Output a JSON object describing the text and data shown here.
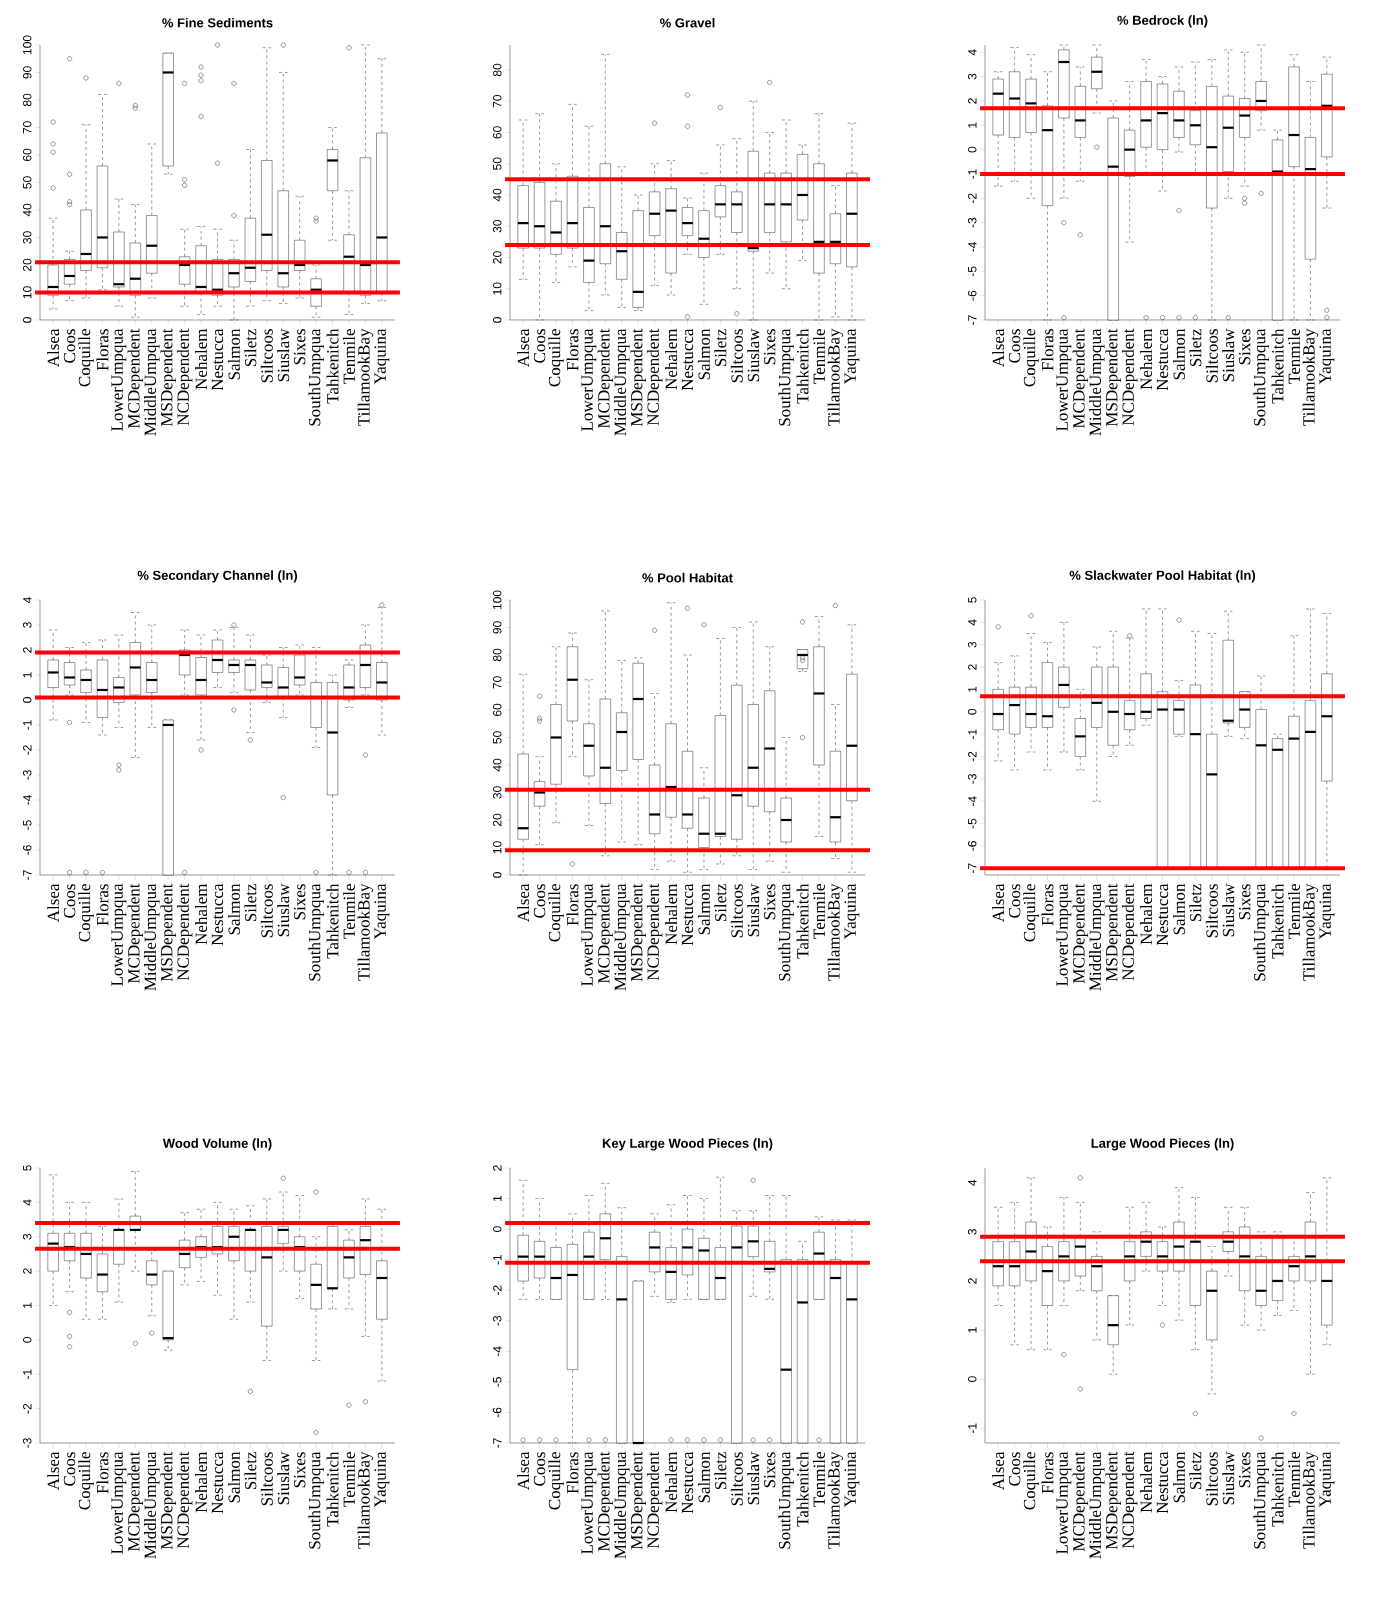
{
  "chart_data": [
    {
      "type": "box",
      "title": "% Fine Sediments",
      "categories": [
        "Alsea",
        "Coos",
        "Coquille",
        "Floras",
        "LowerUmpqua",
        "MCDependent",
        "MiddleUmpqua",
        "MSDependent",
        "NCDependent",
        "Nehalem",
        "Nestucca",
        "Salmon",
        "Siletz",
        "Siltcoos",
        "Siuslaw",
        "Sixes",
        "SouthUmpqua",
        "Tahkenitch",
        "Tenmile",
        "TillamookBay",
        "Yaquina"
      ],
      "ylim": [
        0,
        100
      ],
      "yticks": [
        0,
        10,
        20,
        30,
        40,
        50,
        60,
        70,
        80,
        90,
        100
      ],
      "ref_lines": [
        {
          "axis": "y",
          "value": 21,
          "color": "#ff0000"
        },
        {
          "axis": "y",
          "value": 10,
          "color": "#ff0000"
        }
      ],
      "boxes": [
        {
          "low": 4,
          "q1": 9,
          "median": 12,
          "q3": 20,
          "high": 37,
          "outliers": [
            48,
            61,
            64,
            72
          ]
        },
        {
          "low": 7,
          "q1": 13,
          "median": 16,
          "q3": 22,
          "high": 25,
          "outliers": [
            42,
            43,
            53,
            95
          ]
        },
        {
          "low": 8,
          "q1": 18,
          "median": 24,
          "q3": 40,
          "high": 71,
          "outliers": [
            88
          ]
        },
        {
          "low": 11,
          "q1": 19,
          "median": 30,
          "q3": 56,
          "high": 82
        },
        {
          "low": 5,
          "q1": 12,
          "median": 13,
          "q3": 32,
          "high": 44,
          "outliers": [
            86
          ]
        },
        {
          "low": 1,
          "q1": 9,
          "median": 15,
          "q3": 28,
          "high": 42,
          "outliers": [
            77,
            78
          ]
        },
        {
          "low": 8,
          "q1": 17,
          "median": 27,
          "q3": 38,
          "high": 64
        },
        {
          "low": 53,
          "q1": 56,
          "median": 90,
          "q3": 97,
          "high": 97
        },
        {
          "low": 5,
          "q1": 13,
          "median": 20,
          "q3": 23,
          "high": 33,
          "outliers": [
            49,
            51,
            86
          ]
        },
        {
          "low": 2,
          "q1": 10,
          "median": 12,
          "q3": 27,
          "high": 34,
          "outliers": [
            74,
            87,
            89,
            92
          ]
        },
        {
          "low": 5,
          "q1": 9,
          "median": 11,
          "q3": 22,
          "high": 33,
          "outliers": [
            57,
            100
          ]
        },
        {
          "low": 0,
          "q1": 12,
          "median": 17,
          "q3": 22,
          "high": 29,
          "outliers": [
            38,
            86
          ]
        },
        {
          "low": 5,
          "q1": 14,
          "median": 19,
          "q3": 37,
          "high": 62
        },
        {
          "low": 7,
          "q1": 18,
          "median": 31,
          "q3": 58,
          "high": 99
        },
        {
          "low": 6,
          "q1": 12,
          "median": 17,
          "q3": 47,
          "high": 90,
          "outliers": [
            100
          ]
        },
        {
          "low": 8,
          "q1": 18,
          "median": 20,
          "q3": 29,
          "high": 45
        },
        {
          "low": 1,
          "q1": 5,
          "median": 11,
          "q3": 15,
          "high": 20,
          "outliers": [
            36,
            37
          ]
        },
        {
          "low": 29,
          "q1": 47,
          "median": 58,
          "q3": 62,
          "high": 70
        },
        {
          "low": 2,
          "q1": 10,
          "median": 23,
          "q3": 31,
          "high": 47,
          "outliers": [
            99
          ]
        },
        {
          "low": 6,
          "q1": 9,
          "median": 20,
          "q3": 59,
          "high": 100
        },
        {
          "low": 7,
          "q1": 10,
          "median": 30,
          "q3": 68,
          "high": 95
        }
      ]
    },
    {
      "type": "box",
      "title": "% Gravel",
      "categories": [
        "Alsea",
        "Coos",
        "Coquille",
        "Floras",
        "LowerUmpqua",
        "MCDependent",
        "MiddleUmpqua",
        "MSDependent",
        "NCDependent",
        "Nehalem",
        "Nestucca",
        "Salmon",
        "Siletz",
        "Siltcoos",
        "Siuslaw",
        "Sixes",
        "SouthUmpqua",
        "Tahkenitch",
        "Tenmile",
        "TillamookBay",
        "Yaquina"
      ],
      "ylim": [
        0,
        88
      ],
      "yticks": [
        0,
        10,
        20,
        30,
        40,
        50,
        60,
        70,
        80
      ],
      "ref_lines": [
        {
          "axis": "y",
          "value": 45,
          "color": "#ff0000"
        },
        {
          "axis": "y",
          "value": 24,
          "color": "#ff0000"
        }
      ],
      "boxes": [
        {
          "low": 13,
          "q1": 23,
          "median": 31,
          "q3": 43,
          "high": 64
        },
        {
          "low": 0,
          "q1": 23,
          "median": 30,
          "q3": 44,
          "high": 66
        },
        {
          "low": 12,
          "q1": 21,
          "median": 28,
          "q3": 38,
          "high": 50
        },
        {
          "low": 17,
          "q1": 23,
          "median": 31,
          "q3": 46,
          "high": 69
        },
        {
          "low": 3,
          "q1": 12,
          "median": 19,
          "q3": 36,
          "high": 62
        },
        {
          "low": 8,
          "q1": 18,
          "median": 30,
          "q3": 50,
          "high": 85
        },
        {
          "low": 4,
          "q1": 13,
          "median": 22,
          "q3": 28,
          "high": 49
        },
        {
          "low": 3,
          "q1": 4,
          "median": 9,
          "q3": 35,
          "high": 40
        },
        {
          "low": 11,
          "q1": 27,
          "median": 34,
          "q3": 41,
          "high": 50,
          "outliers": [
            63
          ]
        },
        {
          "low": 8,
          "q1": 15,
          "median": 35,
          "q3": 42,
          "high": 51
        },
        {
          "low": 21,
          "q1": 27,
          "median": 31,
          "q3": 36,
          "high": 39,
          "outliers": [
            1,
            62,
            72
          ]
        },
        {
          "low": 5,
          "q1": 20,
          "median": 26,
          "q3": 35,
          "high": 47
        },
        {
          "low": 21,
          "q1": 33,
          "median": 37,
          "q3": 43,
          "high": 56,
          "outliers": [
            68
          ]
        },
        {
          "low": 10,
          "q1": 28,
          "median": 37,
          "q3": 41,
          "high": 58,
          "outliers": [
            2
          ]
        },
        {
          "low": 0,
          "q1": 22,
          "median": 23,
          "q3": 54,
          "high": 70
        },
        {
          "low": 15,
          "q1": 28,
          "median": 37,
          "q3": 47,
          "high": 60,
          "outliers": [
            76
          ]
        },
        {
          "low": 10,
          "q1": 25,
          "median": 37,
          "q3": 47,
          "high": 64
        },
        {
          "low": 19,
          "q1": 32,
          "median": 40,
          "q3": 53,
          "high": 56
        },
        {
          "low": 0,
          "q1": 15,
          "median": 25,
          "q3": 50,
          "high": 66
        },
        {
          "low": 1,
          "q1": 18,
          "median": 25,
          "q3": 34,
          "high": 43
        },
        {
          "low": 0,
          "q1": 17,
          "median": 34,
          "q3": 47,
          "high": 63
        }
      ]
    },
    {
      "type": "box",
      "title": "% Bedrock (ln)",
      "categories": [
        "Alsea",
        "Coos",
        "Coquille",
        "Floras",
        "LowerUmpqua",
        "MCDependent",
        "MiddleUmpqua",
        "MSDependent",
        "NCDependent",
        "Nehalem",
        "Nestucca",
        "Salmon",
        "Siletz",
        "Siltcoos",
        "Siuslaw",
        "Sixes",
        "SouthUmpqua",
        "Tahkenitch",
        "Tenmile",
        "TillamookBay",
        "Yaquina"
      ],
      "ylim": [
        -7,
        4.3
      ],
      "yticks": [
        -7,
        -6,
        -5,
        -4,
        -3,
        -2,
        -1,
        0,
        1,
        2,
        3,
        4
      ],
      "ref_lines": [
        {
          "axis": "y",
          "value": 1.7,
          "color": "#ff0000"
        },
        {
          "axis": "y",
          "value": -1,
          "color": "#ff0000"
        }
      ],
      "boxes": [
        {
          "low": -1.5,
          "q1": 0.6,
          "median": 2.3,
          "q3": 2.9,
          "high": 3.2
        },
        {
          "low": -1.3,
          "q1": 0.5,
          "median": 2.1,
          "q3": 3.2,
          "high": 4.2
        },
        {
          "low": -2,
          "q1": 0.7,
          "median": 1.9,
          "q3": 2.9,
          "high": 3.9
        },
        {
          "low": -7,
          "q1": -2.3,
          "median": 0.8,
          "q3": 1.8,
          "high": 3.2
        },
        {
          "low": -2,
          "q1": 1.3,
          "median": 3.6,
          "q3": 4.1,
          "high": 4.3,
          "outliers": [
            -3,
            -6.9
          ]
        },
        {
          "low": -1.3,
          "q1": 0.5,
          "median": 1.2,
          "q3": 2.6,
          "high": 3.4,
          "outliers": [
            -3.5
          ]
        },
        {
          "low": 1.5,
          "q1": 2.5,
          "median": 3.2,
          "q3": 3.8,
          "high": 4.3,
          "outliers": [
            0.1
          ]
        },
        {
          "low": -7,
          "q1": -7,
          "median": -0.7,
          "q3": 1.3,
          "high": 2
        },
        {
          "low": -3.8,
          "q1": -1.1,
          "median": 0,
          "q3": 0.8,
          "high": 2.8
        },
        {
          "low": -1,
          "q1": 0.1,
          "median": 1.2,
          "q3": 2.8,
          "high": 3.7,
          "outliers": [
            -6.9
          ]
        },
        {
          "low": -1.7,
          "q1": 0,
          "median": 1.5,
          "q3": 2.7,
          "high": 3,
          "outliers": [
            -6.9
          ]
        },
        {
          "low": -0.1,
          "q1": 0.5,
          "median": 1.2,
          "q3": 2.4,
          "high": 3.4,
          "outliers": [
            -2.5,
            -6.9
          ]
        },
        {
          "low": -1,
          "q1": 0.2,
          "median": 1,
          "q3": 1.6,
          "high": 3.6,
          "outliers": [
            -6.9
          ]
        },
        {
          "low": -7,
          "q1": -2.4,
          "median": 0.1,
          "q3": 2.6,
          "high": 3.7
        },
        {
          "low": -2,
          "q1": -0.9,
          "median": 0.9,
          "q3": 2.2,
          "high": 4.1,
          "outliers": [
            -6.9
          ]
        },
        {
          "low": -1.5,
          "q1": 0.5,
          "median": 1.4,
          "q3": 2.1,
          "high": 4,
          "outliers": [
            -2,
            -2.2
          ]
        },
        {
          "low": 0.8,
          "q1": 1.6,
          "median": 2,
          "q3": 2.8,
          "high": 4.3,
          "outliers": [
            -1.8
          ]
        },
        {
          "low": -7,
          "q1": -7,
          "median": -0.9,
          "q3": 0.4,
          "high": 0.8
        },
        {
          "low": -7,
          "q1": -0.7,
          "median": 0.6,
          "q3": 3.4,
          "high": 3.9
        },
        {
          "low": -7,
          "q1": -4.5,
          "median": -0.8,
          "q3": 0.5,
          "high": 2.8
        },
        {
          "low": -2.4,
          "q1": -0.3,
          "median": 1.8,
          "q3": 3.1,
          "high": 3.8,
          "outliers": [
            -6.6,
            -6.9
          ]
        }
      ]
    },
    {
      "type": "box",
      "title": "% Secondary Channel (ln)",
      "categories": [
        "Alsea",
        "Coos",
        "Coquille",
        "Floras",
        "LowerUmpqua",
        "MCDependent",
        "MiddleUmpqua",
        "MSDependent",
        "NCDependent",
        "Nehalem",
        "Nestucca",
        "Salmon",
        "Siletz",
        "Siltcoos",
        "Siuslaw",
        "Sixes",
        "SouthUmpqua",
        "Tahkenitch",
        "Tenmile",
        "TillamookBay",
        "Yaquina"
      ],
      "ylim": [
        -7,
        4
      ],
      "yticks": [
        -7,
        -6,
        -5,
        -4,
        -3,
        -2,
        -1,
        0,
        1,
        2,
        3,
        4
      ],
      "ref_lines": [
        {
          "axis": "y",
          "value": 1.9,
          "color": "#ff0000"
        },
        {
          "axis": "y",
          "value": 0.1,
          "color": "#ff0000"
        }
      ],
      "boxes": [
        {
          "low": -0.8,
          "q1": 0.5,
          "median": 1.1,
          "q3": 1.6,
          "high": 2.8
        },
        {
          "low": 0.2,
          "q1": 0.6,
          "median": 0.9,
          "q3": 1.5,
          "high": 2.1,
          "outliers": [
            -0.9,
            -6.9
          ]
        },
        {
          "low": -0.9,
          "q1": 0.3,
          "median": 0.8,
          "q3": 1.2,
          "high": 2.3,
          "outliers": [
            -6.9
          ]
        },
        {
          "low": -1.4,
          "q1": -0.7,
          "median": 0.4,
          "q3": 1.6,
          "high": 2.4,
          "outliers": [
            -6.9
          ]
        },
        {
          "low": -1.1,
          "q1": -0.1,
          "median": 0.5,
          "q3": 0.9,
          "high": 2.6,
          "outliers": [
            -2.6,
            -2.8
          ]
        },
        {
          "low": -2.3,
          "q1": 0.2,
          "median": 1.3,
          "q3": 2.3,
          "high": 3.5
        },
        {
          "low": -1.1,
          "q1": 0.3,
          "median": 0.8,
          "q3": 1.5,
          "high": 3
        },
        {
          "low": -7,
          "q1": -7,
          "median": -1,
          "q3": -0.8,
          "high": -0.8
        },
        {
          "low": 0.2,
          "q1": 1,
          "median": 1.8,
          "q3": 2,
          "high": 2.8,
          "outliers": [
            -6.9
          ]
        },
        {
          "low": -1.6,
          "q1": 0.2,
          "median": 0.8,
          "q3": 1.7,
          "high": 2.6,
          "outliers": [
            -2
          ]
        },
        {
          "low": 0.5,
          "q1": 1.1,
          "median": 1.6,
          "q3": 2.4,
          "high": 2.8
        },
        {
          "low": 0.3,
          "q1": 1.1,
          "median": 1.4,
          "q3": 1.6,
          "high": 2.9,
          "outliers": [
            -0.4,
            3
          ]
        },
        {
          "low": -1.3,
          "q1": 0.4,
          "median": 1.4,
          "q3": 1.6,
          "high": 2.6,
          "outliers": [
            -1.6
          ]
        },
        {
          "low": -0.1,
          "q1": 0.5,
          "median": 0.7,
          "q3": 1.4,
          "high": 1.8
        },
        {
          "low": -0.7,
          "q1": 0.1,
          "median": 0.5,
          "q3": 1.3,
          "high": 2.1,
          "outliers": [
            -3.9
          ]
        },
        {
          "low": 0.2,
          "q1": 0.6,
          "median": 0.9,
          "q3": 1.8,
          "high": 2.2
        },
        {
          "low": -1.9,
          "q1": -1.1,
          "median": 0.1,
          "q3": 0.7,
          "high": 2.1,
          "outliers": [
            -6.9
          ]
        },
        {
          "low": -7,
          "q1": -3.8,
          "median": -1.3,
          "q3": 0.7,
          "high": 1
        },
        {
          "low": -0.3,
          "q1": 0,
          "median": 0.5,
          "q3": 1.4,
          "high": 1.6,
          "outliers": [
            -6.9
          ]
        },
        {
          "low": 0.2,
          "q1": 0.5,
          "median": 1.4,
          "q3": 2.2,
          "high": 3,
          "outliers": [
            -2.2,
            -6.9
          ]
        },
        {
          "low": -1.4,
          "q1": 0,
          "median": 0.7,
          "q3": 1.5,
          "high": 3.7,
          "outliers": [
            3.8
          ]
        }
      ]
    },
    {
      "type": "box",
      "title": "% Pool Habitat",
      "categories": [
        "Alsea",
        "Coos",
        "Coquille",
        "Floras",
        "LowerUmpqua",
        "MCDependent",
        "MiddleUmpqua",
        "MSDependent",
        "NCDependent",
        "Nehalem",
        "Nestucca",
        "Salmon",
        "Siletz",
        "Siltcoos",
        "Siuslaw",
        "Sixes",
        "SouthUmpqua",
        "Tahkenitch",
        "Tenmile",
        "TillamookBay",
        "Yaquina"
      ],
      "ylim": [
        0,
        100
      ],
      "yticks": [
        0,
        10,
        20,
        30,
        40,
        50,
        60,
        70,
        80,
        90,
        100
      ],
      "ref_lines": [
        {
          "axis": "y",
          "value": 31,
          "color": "#ff0000"
        },
        {
          "axis": "y",
          "value": 9,
          "color": "#ff0000"
        }
      ],
      "boxes": [
        {
          "low": 0,
          "q1": 13,
          "median": 17,
          "q3": 44,
          "high": 73
        },
        {
          "low": 11,
          "q1": 25,
          "median": 30,
          "q3": 34,
          "high": 43,
          "outliers": [
            56,
            57,
            65
          ]
        },
        {
          "low": 19,
          "q1": 33,
          "median": 50,
          "q3": 62,
          "high": 83
        },
        {
          "low": 43,
          "q1": 56,
          "median": 71,
          "q3": 83,
          "high": 88,
          "outliers": [
            4
          ]
        },
        {
          "low": 18,
          "q1": 36,
          "median": 47,
          "q3": 55,
          "high": 71
        },
        {
          "low": 7,
          "q1": 26,
          "median": 39,
          "q3": 64,
          "high": 96
        },
        {
          "low": 12,
          "q1": 38,
          "median": 52,
          "q3": 59,
          "high": 78
        },
        {
          "low": 11,
          "q1": 42,
          "median": 64,
          "q3": 77,
          "high": 79
        },
        {
          "low": 2,
          "q1": 15,
          "median": 22,
          "q3": 40,
          "high": 66,
          "outliers": [
            89
          ]
        },
        {
          "low": 5,
          "q1": 21,
          "median": 32,
          "q3": 55,
          "high": 99
        },
        {
          "low": 1,
          "q1": 17,
          "median": 22,
          "q3": 45,
          "high": 80,
          "outliers": [
            97
          ]
        },
        {
          "low": 2,
          "q1": 10,
          "median": 15,
          "q3": 28,
          "high": 39,
          "outliers": [
            91
          ]
        },
        {
          "low": 4,
          "q1": 14,
          "median": 15,
          "q3": 58,
          "high": 86
        },
        {
          "low": 7,
          "q1": 13,
          "median": 29,
          "q3": 69,
          "high": 90
        },
        {
          "low": 2,
          "q1": 25,
          "median": 39,
          "q3": 62,
          "high": 92
        },
        {
          "low": 5,
          "q1": 23,
          "median": 46,
          "q3": 67,
          "high": 83
        },
        {
          "low": 1,
          "q1": 12,
          "median": 20,
          "q3": 28,
          "high": 50
        },
        {
          "low": 74,
          "q1": 75,
          "median": 80,
          "q3": 82,
          "high": 82,
          "outliers": [
            50,
            78,
            79,
            92
          ]
        },
        {
          "low": 14,
          "q1": 40,
          "median": 66,
          "q3": 83,
          "high": 94
        },
        {
          "low": 6,
          "q1": 12,
          "median": 21,
          "q3": 45,
          "high": 62,
          "outliers": [
            98
          ]
        },
        {
          "low": 1,
          "q1": 27,
          "median": 47,
          "q3": 73,
          "high": 91
        }
      ]
    },
    {
      "type": "box",
      "title": "% Slackwater Pool Habitat (ln)",
      "categories": [
        "Alsea",
        "Coos",
        "Coquille",
        "Floras",
        "LowerUmpqua",
        "MCDependent",
        "MiddleUmpqua",
        "MSDependent",
        "NCDependent",
        "Nehalem",
        "Nestucca",
        "Salmon",
        "Siletz",
        "Siltcoos",
        "Siuslaw",
        "Sixes",
        "SouthUmpqua",
        "Tahkenitch",
        "Tenmile",
        "TillamookBay",
        "Yaquina"
      ],
      "ylim": [
        -7.3,
        5
      ],
      "yticks": [
        -7,
        -6,
        -5,
        -4,
        -3,
        -2,
        -1,
        0,
        1,
        2,
        3,
        4,
        5
      ],
      "ref_lines": [
        {
          "axis": "y",
          "value": 0.7,
          "color": "#ff0000"
        },
        {
          "axis": "y",
          "value": -7,
          "color": "#ff0000"
        }
      ],
      "boxes": [
        {
          "low": -2.2,
          "q1": -0.8,
          "median": -0.1,
          "q3": 1,
          "high": 2.2,
          "outliers": [
            3.8
          ]
        },
        {
          "low": -2.6,
          "q1": -1,
          "median": 0.3,
          "q3": 1.1,
          "high": 2.5
        },
        {
          "low": -1.8,
          "q1": -0.7,
          "median": -0.1,
          "q3": 1.1,
          "high": 3.5,
          "outliers": [
            4.3
          ]
        },
        {
          "low": -2.6,
          "q1": -0.7,
          "median": -0.2,
          "q3": 2.2,
          "high": 3.1
        },
        {
          "low": -1.8,
          "q1": 0.2,
          "median": 1.2,
          "q3": 2,
          "high": 4
        },
        {
          "low": -2.6,
          "q1": -2,
          "median": -1.1,
          "q3": -0.3,
          "high": 1
        },
        {
          "low": -4,
          "q1": -0.7,
          "median": 0.4,
          "q3": 2,
          "high": 2.9
        },
        {
          "low": -2,
          "q1": -1.5,
          "median": 0,
          "q3": 2,
          "high": 3.6
        },
        {
          "low": -1.5,
          "q1": -0.8,
          "median": -0.1,
          "q3": 0.5,
          "high": 3.3,
          "outliers": [
            3.4
          ]
        },
        {
          "low": -0.6,
          "q1": -0.3,
          "median": 0,
          "q3": 1.7,
          "high": 4.6
        },
        {
          "low": -7,
          "q1": -7,
          "median": 0.1,
          "q3": 0.9,
          "high": 4.6
        },
        {
          "low": -1.1,
          "q1": -1,
          "median": 0.1,
          "q3": 0.5,
          "high": 1.4,
          "outliers": [
            4.1
          ]
        },
        {
          "low": -7,
          "q1": -7,
          "median": -1,
          "q3": 1.2,
          "high": 3.6
        },
        {
          "low": -7,
          "q1": -7,
          "median": -2.8,
          "q3": -1,
          "high": 3.5
        },
        {
          "low": -1.1,
          "q1": -0.5,
          "median": -0.4,
          "q3": 3.2,
          "high": 4.5
        },
        {
          "low": -1.2,
          "q1": -0.7,
          "median": 0.1,
          "q3": 0.9,
          "high": 0.9
        },
        {
          "low": -7,
          "q1": -7,
          "median": -1.5,
          "q3": 0.1,
          "high": 1.6
        },
        {
          "low": -7,
          "q1": -7,
          "median": -1.7,
          "q3": -1.2,
          "high": -1
        },
        {
          "low": -7,
          "q1": -7,
          "median": -1.2,
          "q3": -0.2,
          "high": 3.4
        },
        {
          "low": -7,
          "q1": -7,
          "median": -0.9,
          "q3": 0.5,
          "high": 4.6
        },
        {
          "low": -7,
          "q1": -3.1,
          "median": -0.2,
          "q3": 1.7,
          "high": 4.4
        }
      ]
    },
    {
      "type": "box",
      "title": "Wood Volume (ln)",
      "categories": [
        "Alsea",
        "Coos",
        "Coquille",
        "Floras",
        "LowerUmpqua",
        "MCDependent",
        "MiddleUmpqua",
        "MSDependent",
        "NCDependent",
        "Nehalem",
        "Nestucca",
        "Salmon",
        "Siletz",
        "Siltcoos",
        "Siuslaw",
        "Sixes",
        "SouthUmpqua",
        "Tahkenitch",
        "Tenmile",
        "TillamookBay",
        "Yaquina"
      ],
      "ylim": [
        -3,
        5
      ],
      "yticks": [
        -3,
        -2,
        -1,
        0,
        1,
        2,
        3,
        4,
        5
      ],
      "ref_lines": [
        {
          "axis": "y",
          "value": 3.4,
          "color": "#ff0000"
        },
        {
          "axis": "y",
          "value": 2.65,
          "color": "#ff0000"
        }
      ],
      "boxes": [
        {
          "low": 1,
          "q1": 2,
          "median": 2.8,
          "q3": 3.1,
          "high": 4.8
        },
        {
          "low": 1.4,
          "q1": 2.3,
          "median": 2.7,
          "q3": 3.1,
          "high": 4,
          "outliers": [
            0.8,
            0.1,
            -0.2
          ]
        },
        {
          "low": 0.6,
          "q1": 1.8,
          "median": 2.5,
          "q3": 3.1,
          "high": 4
        },
        {
          "low": 0.6,
          "q1": 1.4,
          "median": 1.9,
          "q3": 2.5,
          "high": 3.3
        },
        {
          "low": 1.1,
          "q1": 2.2,
          "median": 3.2,
          "q3": 3.2,
          "high": 4.1
        },
        {
          "low": 2,
          "q1": 3.2,
          "median": 3.2,
          "q3": 3.6,
          "high": 4.9,
          "outliers": [
            -0.1
          ]
        },
        {
          "low": 0.7,
          "q1": 1.6,
          "median": 1.9,
          "q3": 2.3,
          "high": 2.6,
          "outliers": [
            0.2
          ]
        },
        {
          "low": -0.3,
          "q1": 0,
          "median": 0.05,
          "q3": 2,
          "high": 2
        },
        {
          "low": 1.6,
          "q1": 2.1,
          "median": 2.5,
          "q3": 2.9,
          "high": 3.7
        },
        {
          "low": 1.7,
          "q1": 2.4,
          "median": 2.7,
          "q3": 3,
          "high": 3.8
        },
        {
          "low": 1.3,
          "q1": 2.5,
          "median": 2.7,
          "q3": 3.3,
          "high": 4
        },
        {
          "low": 0.6,
          "q1": 2.3,
          "median": 3,
          "q3": 3.3,
          "high": 3.8
        },
        {
          "low": 1.1,
          "q1": 2,
          "median": 3.2,
          "q3": 3.2,
          "high": 3.9,
          "outliers": [
            -1.5
          ]
        },
        {
          "low": -0.6,
          "q1": 0.4,
          "median": 2.4,
          "q3": 3.3,
          "high": 4.1
        },
        {
          "low": 2,
          "q1": 2.8,
          "median": 3.2,
          "q3": 3.3,
          "high": 4.3,
          "outliers": [
            4.7
          ]
        },
        {
          "low": 1.2,
          "q1": 2,
          "median": 2.7,
          "q3": 3,
          "high": 4.2
        },
        {
          "low": -0.6,
          "q1": 0.9,
          "median": 1.6,
          "q3": 2.2,
          "high": 3,
          "outliers": [
            4.3,
            -2.7
          ]
        },
        {
          "low": 0.9,
          "q1": 1.5,
          "median": 1.5,
          "q3": 3.3,
          "high": 3.4
        },
        {
          "low": 0.9,
          "q1": 1.8,
          "median": 2.4,
          "q3": 2.9,
          "high": 3.2,
          "outliers": [
            -1.9
          ]
        },
        {
          "low": 0.1,
          "q1": 1.9,
          "median": 2.9,
          "q3": 3.3,
          "high": 4.1,
          "outliers": [
            -1.8
          ]
        },
        {
          "low": -1.2,
          "q1": 0.6,
          "median": 1.8,
          "q3": 2.3,
          "high": 3.8
        }
      ]
    },
    {
      "type": "box",
      "title": "Key Large Wood Pieces (ln)",
      "categories": [
        "Alsea",
        "Coos",
        "Coquille",
        "Floras",
        "LowerUmpqua",
        "MCDependent",
        "MiddleUmpqua",
        "MSDependent",
        "NCDependent",
        "Nehalem",
        "Nestucca",
        "Salmon",
        "Siletz",
        "Siltcoos",
        "Siuslaw",
        "Sixes",
        "SouthUmpqua",
        "Tahkenitch",
        "Tenmile",
        "TillamookBay",
        "Yaquina"
      ],
      "ylim": [
        -7,
        2
      ],
      "yticks": [
        -7,
        -6,
        -5,
        -4,
        -3,
        -2,
        -1,
        0,
        1,
        2
      ],
      "ref_lines": [
        {
          "axis": "y",
          "value": 0.2,
          "color": "#ff0000"
        },
        {
          "axis": "y",
          "value": -1.1,
          "color": "#ff0000"
        }
      ],
      "boxes": [
        {
          "low": -2.3,
          "q1": -1.7,
          "median": -0.9,
          "q3": -0.2,
          "high": 1.6,
          "outliers": [
            -6.9
          ]
        },
        {
          "low": -2.3,
          "q1": -1.6,
          "median": -0.9,
          "q3": -0.4,
          "high": 1,
          "outliers": [
            -6.9
          ]
        },
        {
          "low": -2.3,
          "q1": -2.3,
          "median": -1.6,
          "q3": -0.6,
          "high": 0.2,
          "outliers": [
            -6.9
          ]
        },
        {
          "low": -7,
          "q1": -4.6,
          "median": -1.5,
          "q3": -0.5,
          "high": 0.5
        },
        {
          "low": -2.3,
          "q1": -2.3,
          "median": -0.9,
          "q3": -0.1,
          "high": 1.1,
          "outliers": [
            -6.9
          ]
        },
        {
          "low": -2.3,
          "q1": -1,
          "median": -0.3,
          "q3": 0.5,
          "high": 1.5,
          "outliers": [
            -6.9
          ]
        },
        {
          "low": -7,
          "q1": -7,
          "median": -2.3,
          "q3": -0.9,
          "high": 0.7
        },
        {
          "low": -7,
          "q1": -7,
          "median": -7,
          "q3": -1.7,
          "high": -1.7
        },
        {
          "low": -2.2,
          "q1": -1.4,
          "median": -0.6,
          "q3": -0.1,
          "high": 0.5
        },
        {
          "low": -2.4,
          "q1": -2.3,
          "median": -1.4,
          "q3": -0.6,
          "high": 0.8,
          "outliers": [
            -6.9
          ]
        },
        {
          "low": -2.3,
          "q1": -1.5,
          "median": -0.6,
          "q3": 0,
          "high": 1.1,
          "outliers": [
            -6.9
          ]
        },
        {
          "low": -2.3,
          "q1": -2.3,
          "median": -0.7,
          "q3": -0.3,
          "high": 1,
          "outliers": [
            -6.9
          ]
        },
        {
          "low": -2.3,
          "q1": -2.3,
          "median": -1.6,
          "q3": -0.6,
          "high": 1.7,
          "outliers": [
            -6.9
          ]
        },
        {
          "low": -7,
          "q1": -7,
          "median": -0.6,
          "q3": 0.1,
          "high": 0.6
        },
        {
          "low": -2.2,
          "q1": -0.9,
          "median": -0.4,
          "q3": 0.1,
          "high": 0.6,
          "outliers": [
            1.6,
            -6.9
          ]
        },
        {
          "low": -2.3,
          "q1": -1.4,
          "median": -1.3,
          "q3": -0.4,
          "high": 1.1,
          "outliers": [
            -6.9
          ]
        },
        {
          "low": -7,
          "q1": -7,
          "median": -4.6,
          "q3": -1,
          "high": 1.1
        },
        {
          "low": -7,
          "q1": -7,
          "median": -2.4,
          "q3": -1,
          "high": -0.4
        },
        {
          "low": -2.3,
          "q1": -2.3,
          "median": -0.8,
          "q3": -0.1,
          "high": 0.4,
          "outliers": [
            -6.9
          ]
        },
        {
          "low": -7,
          "q1": -7,
          "median": -1.6,
          "q3": -1,
          "high": 0.3
        },
        {
          "low": -7,
          "q1": -7,
          "median": -2.3,
          "q3": -1.1,
          "high": 0.3
        }
      ]
    },
    {
      "type": "box",
      "title": "Large Wood Pieces (ln)",
      "categories": [
        "Alsea",
        "Coos",
        "Coquille",
        "Floras",
        "LowerUmpqua",
        "MCDependent",
        "MiddleUmpqua",
        "MSDependent",
        "NCDependent",
        "Nehalem",
        "Nestucca",
        "Salmon",
        "Siletz",
        "Siltcoos",
        "Siuslaw",
        "Sixes",
        "SouthUmpqua",
        "Tahkenitch",
        "Tenmile",
        "TillamookBay",
        "Yaquina"
      ],
      "ylim": [
        -1.3,
        4.3
      ],
      "yticks": [
        -1,
        0,
        1,
        2,
        3,
        4
      ],
      "ref_lines": [
        {
          "axis": "y",
          "value": 2.9,
          "color": "#ff0000"
        },
        {
          "axis": "y",
          "value": 2.4,
          "color": "#ff0000"
        }
      ],
      "boxes": [
        {
          "low": 1.5,
          "q1": 1.9,
          "median": 2.3,
          "q3": 2.8,
          "high": 3.5
        },
        {
          "low": 0.7,
          "q1": 1.9,
          "median": 2.3,
          "q3": 2.8,
          "high": 3.6
        },
        {
          "low": 0.6,
          "q1": 2,
          "median": 2.6,
          "q3": 3.2,
          "high": 4.1
        },
        {
          "low": 0.6,
          "q1": 1.5,
          "median": 2.2,
          "q3": 2.7,
          "high": 3.1
        },
        {
          "low": 1.5,
          "q1": 2,
          "median": 2.5,
          "q3": 2.8,
          "high": 3.7,
          "outliers": [
            0.5
          ]
        },
        {
          "low": 1.8,
          "q1": 2.1,
          "median": 2.7,
          "q3": 2.9,
          "high": 3.6,
          "outliers": [
            4.1,
            -0.2
          ]
        },
        {
          "low": 0.8,
          "q1": 1.8,
          "median": 2.3,
          "q3": 2.5,
          "high": 3
        },
        {
          "low": 0.1,
          "q1": 0.7,
          "median": 1.1,
          "q3": 1.7,
          "high": 1.7
        },
        {
          "low": 1.1,
          "q1": 2,
          "median": 2.5,
          "q3": 2.8,
          "high": 3.5
        },
        {
          "low": 2.2,
          "q1": 2.5,
          "median": 2.8,
          "q3": 3,
          "high": 3.6
        },
        {
          "low": 1.5,
          "q1": 2.2,
          "median": 2.5,
          "q3": 2.8,
          "high": 3.1,
          "outliers": [
            1.1
          ]
        },
        {
          "low": 1.2,
          "q1": 2.2,
          "median": 2.7,
          "q3": 3.2,
          "high": 3.9
        },
        {
          "low": 0.6,
          "q1": 1.5,
          "median": 2.8,
          "q3": 2.8,
          "high": 3.7,
          "outliers": [
            -0.7
          ]
        },
        {
          "low": -0.3,
          "q1": 0.8,
          "median": 1.8,
          "q3": 2.2,
          "high": 2.7
        },
        {
          "low": 2.1,
          "q1": 2.6,
          "median": 2.8,
          "q3": 3,
          "high": 3.5
        },
        {
          "low": 1.1,
          "q1": 1.8,
          "median": 2.5,
          "q3": 3.1,
          "high": 3.5
        },
        {
          "low": 1,
          "q1": 1.5,
          "median": 1.8,
          "q3": 2.5,
          "high": 3,
          "outliers": [
            -1.2
          ]
        },
        {
          "low": 1.3,
          "q1": 1.6,
          "median": 2,
          "q3": 2.9,
          "high": 3
        },
        {
          "low": 1.4,
          "q1": 2,
          "median": 2.3,
          "q3": 2.5,
          "high": 2.9,
          "outliers": [
            -0.7
          ]
        },
        {
          "low": 0.1,
          "q1": 2,
          "median": 2.5,
          "q3": 3.2,
          "high": 3.8
        },
        {
          "low": 0.7,
          "q1": 1.1,
          "median": 2,
          "q3": 2.4,
          "high": 4.1
        }
      ]
    }
  ]
}
